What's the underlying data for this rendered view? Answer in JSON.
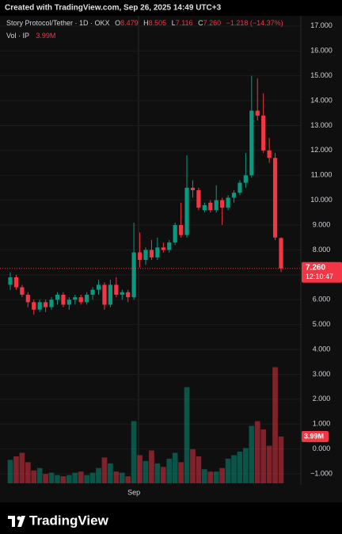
{
  "chart_data": {
    "type": "candlestick",
    "header": "Created with TradingView.com, Sep 26, 2025 14:49 UTC+3",
    "legend": {
      "symbol": "Story Protocol/Tether · 1D · OKX",
      "o_label": "O",
      "open": "8.479",
      "h_label": "H",
      "high": "8.505",
      "l_label": "L",
      "low": "7.116",
      "c_label": "C",
      "close": "7.260",
      "change": "−1.218 (−14.37%)",
      "volume_name": "Vol · IP"
    },
    "categories": [
      null,
      null,
      null,
      null,
      null,
      null,
      null,
      null,
      null,
      null,
      null,
      null,
      null,
      null,
      null,
      null,
      null,
      null,
      null,
      null,
      null,
      "Sep",
      null,
      null,
      null,
      null,
      null,
      null,
      null,
      null,
      null,
      null,
      null,
      null,
      null,
      null,
      null,
      null,
      null,
      null,
      null,
      null,
      null,
      null,
      null,
      null,
      null
    ],
    "open": [
      6.6,
      6.9,
      6.5,
      6.2,
      5.9,
      5.6,
      5.9,
      5.7,
      6.0,
      6.2,
      5.8,
      6.0,
      6.1,
      5.9,
      6.2,
      6.4,
      6.6,
      5.8,
      6.6,
      6.2,
      6.3,
      6.1,
      7.9,
      7.6,
      8.0,
      7.7,
      8.1,
      8.0,
      8.3,
      9.0,
      8.6,
      10.5,
      10.4,
      9.6,
      9.9,
      9.6,
      10.0,
      9.7,
      10.1,
      10.3,
      10.7,
      11.0,
      13.6,
      13.4,
      12.0,
      11.7,
      8.479
    ],
    "high": [
      7.1,
      7.0,
      6.6,
      6.3,
      6.0,
      6.0,
      6.0,
      6.1,
      6.3,
      6.3,
      6.1,
      6.2,
      6.2,
      6.3,
      6.5,
      6.8,
      6.7,
      6.8,
      6.9,
      6.4,
      6.4,
      9.1,
      8.7,
      8.1,
      8.4,
      8.5,
      8.3,
      8.4,
      9.1,
      9.9,
      11.8,
      10.8,
      10.5,
      9.9,
      10.0,
      10.6,
      10.1,
      10.2,
      10.4,
      10.8,
      11.9,
      15.0,
      14.9,
      14.3,
      12.5,
      11.9,
      8.505
    ],
    "low": [
      6.4,
      6.4,
      6.1,
      5.7,
      5.4,
      5.5,
      5.5,
      5.6,
      5.8,
      5.7,
      5.6,
      5.8,
      5.8,
      5.8,
      6.0,
      6.2,
      5.6,
      5.7,
      6.1,
      6.0,
      5.9,
      6.0,
      7.3,
      7.4,
      7.6,
      7.6,
      7.9,
      7.9,
      8.2,
      8.5,
      8.5,
      10.1,
      9.6,
      9.5,
      9.5,
      9.5,
      9.0,
      9.6,
      9.9,
      10.2,
      10.5,
      10.9,
      13.2,
      11.9,
      11.5,
      8.4,
      7.116
    ],
    "close": [
      6.9,
      6.5,
      6.2,
      5.9,
      5.6,
      5.9,
      5.7,
      6.0,
      6.2,
      5.8,
      6.0,
      6.1,
      5.9,
      6.2,
      6.4,
      6.6,
      5.8,
      6.6,
      6.2,
      6.3,
      6.1,
      7.9,
      7.6,
      8.0,
      7.7,
      8.1,
      8.0,
      8.3,
      9.0,
      8.6,
      10.5,
      10.4,
      9.7,
      9.8,
      9.6,
      10.0,
      9.7,
      10.1,
      10.3,
      10.7,
      11.0,
      13.6,
      13.4,
      12.0,
      11.7,
      8.5,
      7.26
    ],
    "volume": {
      "values": [
        2.0,
        2.3,
        2.6,
        1.8,
        1.1,
        1.3,
        0.8,
        0.9,
        0.7,
        0.6,
        0.7,
        0.9,
        1.0,
        0.7,
        0.9,
        1.3,
        2.2,
        1.7,
        1.0,
        0.9,
        0.6,
        5.3,
        2.4,
        1.9,
        2.8,
        1.7,
        1.4,
        2.1,
        2.6,
        1.8,
        8.2,
        2.9,
        2.3,
        1.2,
        1.0,
        1.0,
        1.3,
        2.1,
        2.4,
        2.7,
        3.0,
        4.9,
        5.3,
        4.6,
        3.2,
        9.9,
        3.99
      ],
      "value_labels": [
        null,
        null,
        null,
        null,
        null,
        null,
        null,
        null,
        null,
        null,
        null,
        null,
        null,
        null,
        null,
        null,
        null,
        null,
        null,
        null,
        null,
        null,
        null,
        null,
        null,
        null,
        null,
        null,
        null,
        null,
        null,
        null,
        null,
        null,
        null,
        null,
        null,
        null,
        null,
        null,
        null,
        null,
        null,
        null,
        null,
        null,
        "3.99M"
      ]
    },
    "up_color": "#089981",
    "down_color": "#f23645",
    "last_price": {
      "value": 7.26,
      "label": "7.260"
    },
    "countdown": "12:10:47",
    "ylim": [
      -1.38,
      17.41
    ],
    "yticks": [
      {
        "value": 17,
        "label": "17.000"
      },
      {
        "value": 16,
        "label": "16.000"
      },
      {
        "value": 15,
        "label": "15.000"
      },
      {
        "value": 14,
        "label": "14.000"
      },
      {
        "value": 13,
        "label": "13.000"
      },
      {
        "value": 12,
        "label": "12.000"
      },
      {
        "value": 11,
        "label": "11.000"
      },
      {
        "value": 10,
        "label": "10.000"
      },
      {
        "value": 9,
        "label": "9.000"
      },
      {
        "value": 8,
        "label": "8.000"
      },
      {
        "value": 7,
        "label": "7.000"
      },
      {
        "value": 6,
        "label": "6.000"
      },
      {
        "value": 5,
        "label": "5.000"
      },
      {
        "value": 4,
        "label": "4.000"
      },
      {
        "value": 3,
        "label": "3.000"
      },
      {
        "value": 2,
        "label": "2.000"
      },
      {
        "value": 1,
        "label": "1.000"
      },
      {
        "value": 0,
        "label": "0.000"
      },
      {
        "value": -1,
        "label": "−1.000"
      }
    ],
    "grid": true,
    "brand": "TradingView"
  }
}
